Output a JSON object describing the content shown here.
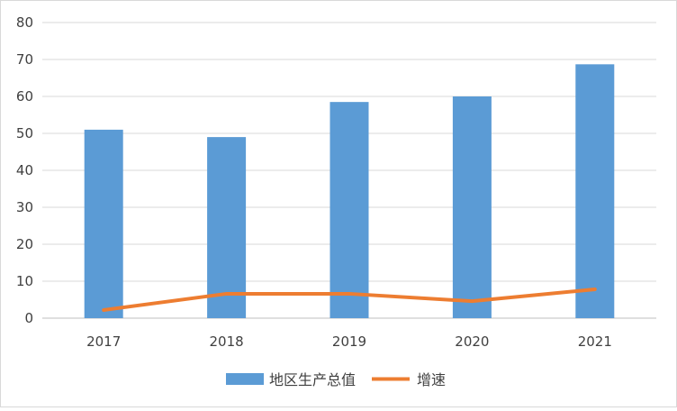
{
  "chart_data": {
    "type": "bar",
    "categories": [
      "2017",
      "2018",
      "2019",
      "2020",
      "2021"
    ],
    "series": [
      {
        "name": "地区生产总值",
        "type": "bar",
        "color": "#5b9bd5",
        "values": [
          51,
          49,
          58.5,
          60,
          68.7
        ]
      },
      {
        "name": "增速",
        "type": "line",
        "color": "#ed7d31",
        "values": [
          2.2,
          6.6,
          6.6,
          4.6,
          7.8
        ]
      }
    ],
    "ylim": [
      0,
      80
    ],
    "yticks": [
      "0",
      "10",
      "20",
      "30",
      "40",
      "50",
      "60",
      "70",
      "80"
    ],
    "grid": true,
    "legend_position": "bottom"
  }
}
